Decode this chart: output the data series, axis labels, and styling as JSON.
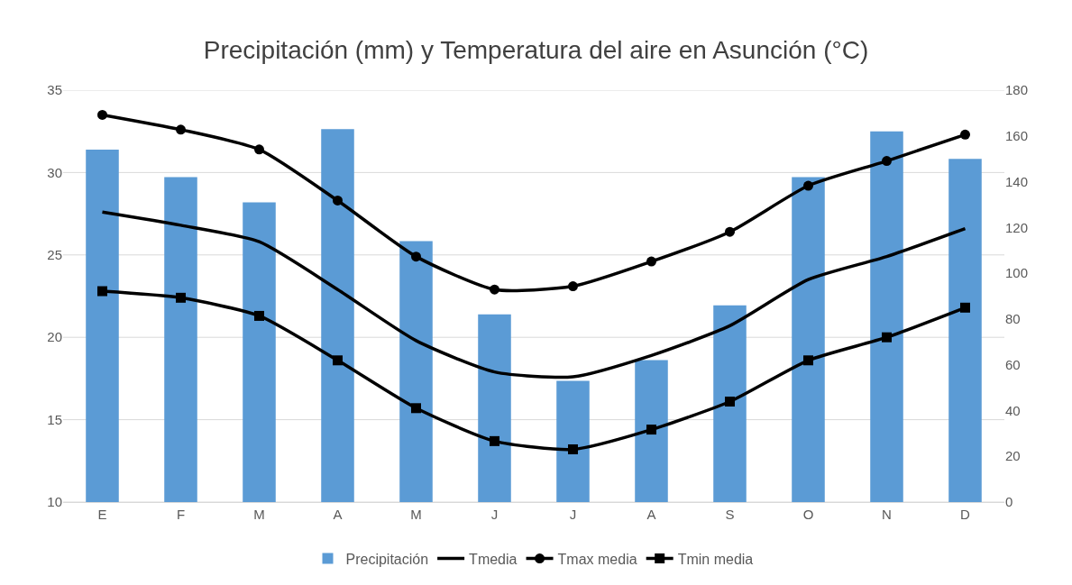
{
  "chart_data": {
    "type": "bar",
    "title": "Precipitación (mm) y Temperatura del aire en Asunción (°C)",
    "categories": [
      "E",
      "F",
      "M",
      "A",
      "M",
      "J",
      "J",
      "A",
      "S",
      "O",
      "N",
      "D"
    ],
    "series": [
      {
        "name": "Precipitación",
        "axis": "y2",
        "color": "#5b9bd5",
        "values": [
          154,
          142,
          131,
          163,
          114,
          82,
          53,
          62,
          86,
          142,
          162,
          150
        ]
      },
      {
        "name": "Tmedia",
        "type": "line",
        "color": "#000000",
        "marker": "none",
        "values": [
          27.6,
          26.8,
          25.8,
          22.9,
          19.8,
          17.9,
          17.6,
          18.9,
          20.7,
          23.5,
          24.9,
          26.6
        ]
      },
      {
        "name": "Tmax media",
        "type": "line",
        "color": "#000000",
        "marker": "circle",
        "values": [
          33.5,
          32.6,
          31.4,
          28.3,
          24.9,
          22.9,
          23.1,
          24.6,
          26.4,
          29.2,
          30.7,
          32.3
        ]
      },
      {
        "name": "Tmin media",
        "type": "line",
        "color": "#000000",
        "marker": "square",
        "values": [
          22.8,
          22.4,
          21.3,
          18.6,
          15.7,
          13.7,
          13.2,
          14.4,
          16.1,
          18.6,
          20.0,
          21.8
        ]
      }
    ],
    "ylim": [
      10,
      35
    ],
    "yticks": [
      10,
      15,
      20,
      25,
      30,
      35
    ],
    "y2lim": [
      0,
      180
    ],
    "y2ticks": [
      0,
      20,
      40,
      60,
      80,
      100,
      120,
      140,
      160,
      180
    ],
    "grid": "y",
    "legend": "bottom"
  }
}
